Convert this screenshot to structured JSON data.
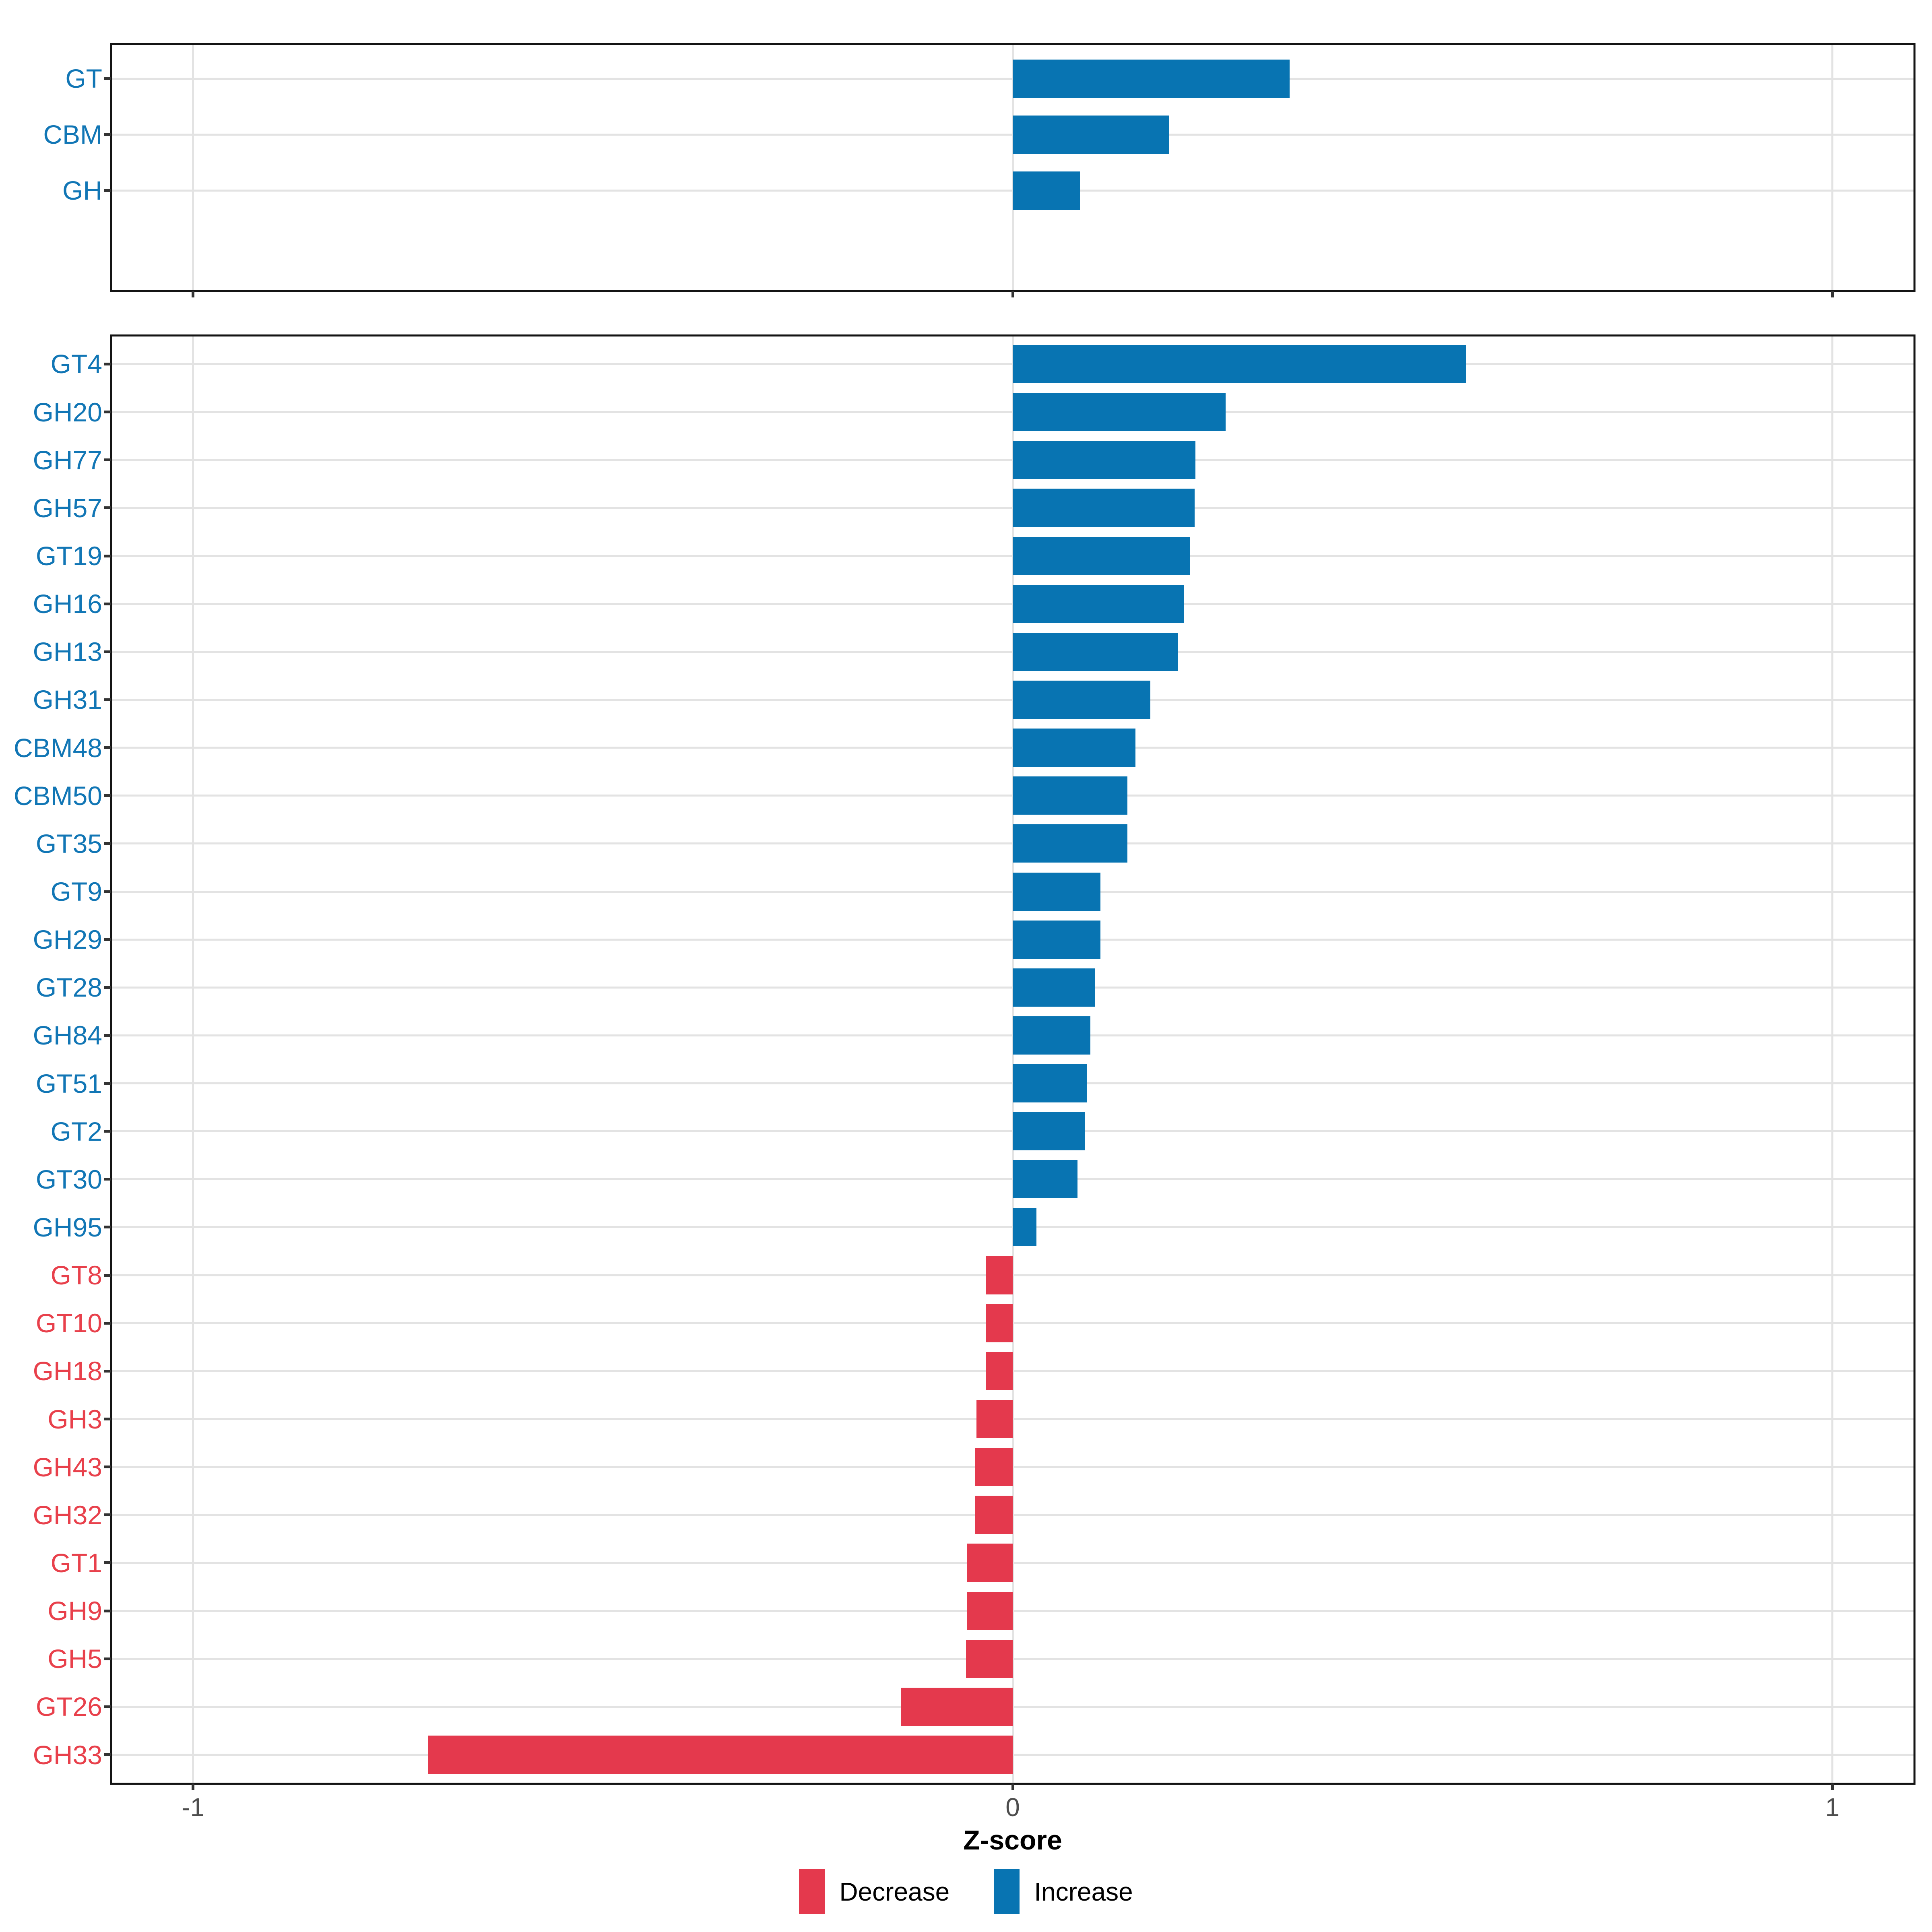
{
  "figure": {
    "xlabel": "Z-score",
    "x_tick_labels": [
      "-1",
      "0",
      "1"
    ],
    "x_tick_values": [
      -1,
      0,
      1
    ],
    "legend": {
      "position": "bottom",
      "items": [
        {
          "label": "Decrease",
          "key": "decrease"
        },
        {
          "label": "Increase",
          "key": "increase"
        }
      ]
    },
    "colors": {
      "increase": "#0874B2",
      "decrease": "#E4394D",
      "label_increase": "#1176B5",
      "label_decrease": "#E8404B",
      "grid": "#E3E3E3",
      "border": "#141414",
      "tick": "#333333",
      "axis_text": "#4D4D4D"
    }
  },
  "chart_data": [
    {
      "type": "bar",
      "orientation": "horizontal",
      "panel_id": "panel-class",
      "title": "",
      "xlabel": "Z-score",
      "ylabel": "",
      "xlim": [
        -1.1,
        1.1
      ],
      "grid": "major",
      "legend_position": "bottom",
      "color_rule": "sign (positive = Increase blue, negative = Decrease red)",
      "categories": [
        "GT",
        "CBM",
        "GH"
      ],
      "values": [
        0.338,
        0.191,
        0.082
      ]
    },
    {
      "type": "bar",
      "orientation": "horizontal",
      "panel_id": "panel-family",
      "title": "",
      "xlabel": "Z-score",
      "ylabel": "",
      "xlim": [
        -1.1,
        1.1
      ],
      "grid": "major",
      "legend_position": "bottom",
      "color_rule": "sign (positive = Increase blue, negative = Decrease red)",
      "categories": [
        "GT4",
        "GH20",
        "GH77",
        "GH57",
        "GT19",
        "GH16",
        "GH13",
        "GH31",
        "CBM48",
        "CBM50",
        "GT35",
        "GT9",
        "GH29",
        "GT28",
        "GH84",
        "GT51",
        "GT2",
        "GT30",
        "GH95",
        "GT8",
        "GT10",
        "GH18",
        "GH3",
        "GH43",
        "GH32",
        "GT1",
        "GH9",
        "GH5",
        "GT26",
        "GH33"
      ],
      "values": [
        0.553,
        0.26,
        0.223,
        0.222,
        0.216,
        0.209,
        0.202,
        0.168,
        0.15,
        0.14,
        0.14,
        0.107,
        0.107,
        0.1,
        0.095,
        0.091,
        0.088,
        0.079,
        0.029,
        -0.033,
        -0.033,
        -0.033,
        -0.044,
        -0.046,
        -0.046,
        -0.056,
        -0.056,
        -0.057,
        -0.136,
        -0.713
      ]
    }
  ]
}
